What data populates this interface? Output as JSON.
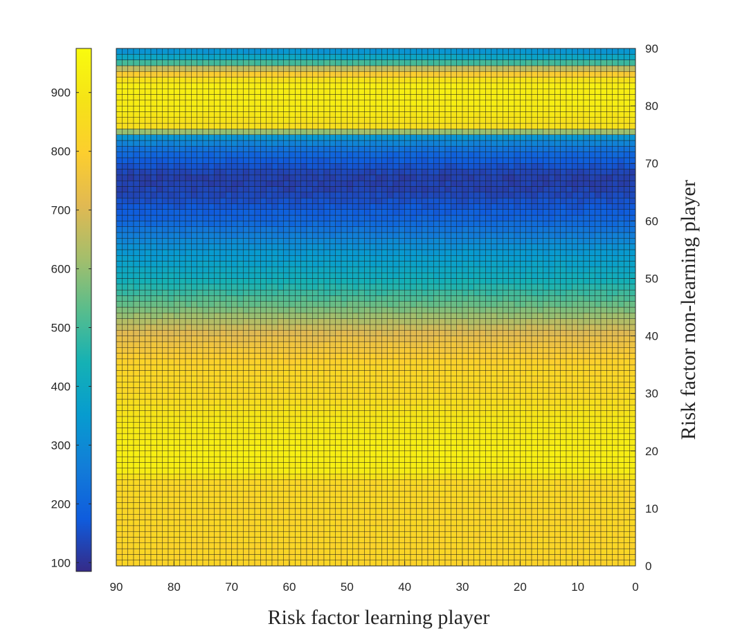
{
  "chart_data": {
    "type": "heatmap",
    "title": "",
    "xlabel": "Risk factor learning player",
    "ylabel": "Risk factor non-learning player",
    "xlim": [
      90,
      0
    ],
    "ylim": [
      0,
      90
    ],
    "x_reversed": true,
    "x_axis_position": "bottom",
    "y_axis_position": "right",
    "xticks": [
      90,
      80,
      70,
      60,
      50,
      40,
      30,
      20,
      10,
      0
    ],
    "yticks": [
      0,
      10,
      20,
      30,
      40,
      50,
      60,
      70,
      80,
      90
    ],
    "grid_cells": 90,
    "colormap": "parula",
    "colorbar": {
      "position": "left",
      "range": [
        85,
        975
      ],
      "ticks": [
        100,
        200,
        300,
        400,
        500,
        600,
        700,
        800,
        900
      ]
    },
    "row_profile": {
      "description": "Values vary mainly along the y axis (non-learning player risk factor); approximately constant along x.",
      "y": [
        0,
        5,
        10,
        15,
        16,
        20,
        25,
        30,
        35,
        40,
        45,
        50,
        55,
        60,
        65,
        68,
        72,
        75,
        76,
        80,
        84,
        86,
        88,
        90
      ],
      "value": [
        820,
        825,
        830,
        835,
        920,
        925,
        900,
        840,
        820,
        720,
        560,
        420,
        330,
        200,
        130,
        120,
        210,
        350,
        860,
        920,
        925,
        740,
        420,
        300
      ]
    }
  }
}
